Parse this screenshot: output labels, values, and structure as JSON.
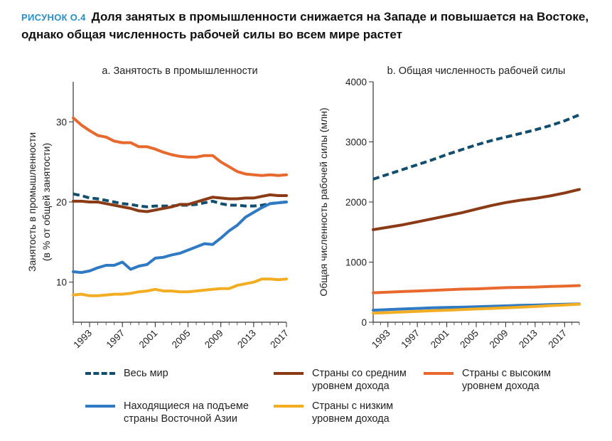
{
  "figure": {
    "label": "РИСУНОК О.4",
    "title": "Доля занятых в промышленности снижается на Западе и повышается на Востоке, однако общая численность рабочей силы во всем мире растет"
  },
  "colors": {
    "world": "#114e6e",
    "middle": "#8b3a16",
    "high": "#e8692e",
    "east_asia": "#2f7ac2",
    "low": "#f2ad22"
  },
  "chart_data": [
    {
      "type": "line",
      "panel": "a",
      "title": "а. Занятость в промышленности",
      "xlabel": "",
      "ylabel": "Занятость в промышленности (в % от общей занятости)",
      "ylabel_lines": [
        "Занятость в промышленности",
        "(в % от общей занятости)"
      ],
      "xlim": [
        1991,
        2017
      ],
      "ylim": [
        5,
        35
      ],
      "yticks": [
        10,
        20,
        30
      ],
      "xticks": [
        1993,
        1997,
        2001,
        2005,
        2009,
        2013,
        2017
      ],
      "x": [
        1991,
        1992,
        1993,
        1994,
        1995,
        1996,
        1997,
        1998,
        1999,
        2000,
        2001,
        2002,
        2003,
        2004,
        2005,
        2006,
        2007,
        2008,
        2009,
        2010,
        2011,
        2012,
        2013,
        2014,
        2015,
        2016,
        2017
      ],
      "series": [
        {
          "key": "world",
          "dashed": true,
          "values": [
            21.0,
            20.8,
            20.5,
            20.4,
            20.2,
            20.0,
            19.8,
            19.7,
            19.5,
            19.4,
            19.5,
            19.5,
            19.5,
            19.6,
            19.6,
            19.7,
            19.9,
            20.1,
            19.8,
            19.6,
            19.6,
            19.5,
            19.5,
            19.6,
            19.8,
            19.9,
            20.0
          ]
        },
        {
          "key": "middle",
          "dashed": false,
          "values": [
            20.1,
            20.1,
            20.0,
            20.0,
            19.8,
            19.6,
            19.4,
            19.2,
            18.9,
            18.8,
            19.0,
            19.2,
            19.4,
            19.7,
            19.7,
            20.0,
            20.3,
            20.6,
            20.5,
            20.4,
            20.4,
            20.5,
            20.5,
            20.7,
            20.9,
            20.8,
            20.8
          ]
        },
        {
          "key": "high",
          "dashed": false,
          "values": [
            30.5,
            29.6,
            28.9,
            28.3,
            28.1,
            27.6,
            27.4,
            27.4,
            26.9,
            26.9,
            26.6,
            26.2,
            25.9,
            25.7,
            25.6,
            25.6,
            25.8,
            25.8,
            25.0,
            24.4,
            23.8,
            23.5,
            23.4,
            23.3,
            23.4,
            23.3,
            23.4
          ]
        },
        {
          "key": "east_asia",
          "dashed": false,
          "values": [
            11.3,
            11.2,
            11.4,
            11.8,
            12.1,
            12.1,
            12.5,
            11.6,
            12.0,
            12.2,
            13.0,
            13.1,
            13.4,
            13.6,
            14.0,
            14.4,
            14.8,
            14.7,
            15.5,
            16.4,
            17.1,
            18.1,
            18.7,
            19.3,
            19.8,
            19.9,
            20.0
          ]
        },
        {
          "key": "low",
          "dashed": false,
          "values": [
            8.4,
            8.5,
            8.3,
            8.3,
            8.4,
            8.5,
            8.5,
            8.6,
            8.8,
            8.9,
            9.1,
            8.9,
            8.9,
            8.8,
            8.8,
            8.9,
            9.0,
            9.1,
            9.2,
            9.2,
            9.6,
            9.8,
            10.0,
            10.4,
            10.4,
            10.3,
            10.4
          ]
        }
      ]
    },
    {
      "type": "line",
      "panel": "b",
      "title": "b. Общая численность рабочей силы",
      "xlabel": "",
      "ylabel": "Общая численность рабочей силы (млн)",
      "xlim": [
        1991,
        2019
      ],
      "ylim": [
        0,
        4000
      ],
      "yticks": [
        0,
        1000,
        2000,
        3000,
        4000
      ],
      "xticks": [
        1993,
        1997,
        2001,
        2005,
        2009,
        2013,
        2017
      ],
      "x": [
        1991,
        1993,
        1995,
        1997,
        1999,
        2001,
        2003,
        2005,
        2007,
        2009,
        2011,
        2013,
        2015,
        2017,
        2019
      ],
      "series": [
        {
          "key": "world",
          "dashed": true,
          "values": [
            2380,
            2460,
            2540,
            2620,
            2700,
            2790,
            2870,
            2950,
            3020,
            3080,
            3140,
            3200,
            3270,
            3350,
            3450
          ]
        },
        {
          "key": "middle",
          "dashed": false,
          "values": [
            1540,
            1580,
            1620,
            1670,
            1720,
            1770,
            1820,
            1880,
            1940,
            1990,
            2030,
            2060,
            2100,
            2150,
            2210
          ]
        },
        {
          "key": "high",
          "dashed": false,
          "values": [
            490,
            500,
            510,
            520,
            530,
            540,
            550,
            555,
            565,
            575,
            580,
            585,
            595,
            600,
            610
          ]
        },
        {
          "key": "east_asia",
          "dashed": false,
          "values": [
            200,
            210,
            220,
            230,
            240,
            245,
            250,
            258,
            265,
            272,
            280,
            285,
            292,
            298,
            305
          ]
        },
        {
          "key": "low",
          "dashed": false,
          "values": [
            150,
            160,
            170,
            180,
            190,
            200,
            210,
            220,
            230,
            240,
            250,
            262,
            275,
            288,
            300
          ]
        }
      ]
    }
  ],
  "legend": [
    {
      "key": "world",
      "label": "Весь мир"
    },
    {
      "key": "middle",
      "label": "Страны со средним уровнем дохода"
    },
    {
      "key": "high",
      "label": "Страны с высоким уровнем дохода"
    },
    {
      "key": "east_asia",
      "label": "Находящиеся на подъеме страны Восточной Азии"
    },
    {
      "key": "low",
      "label": "Страны с низким уровнем дохода"
    }
  ]
}
